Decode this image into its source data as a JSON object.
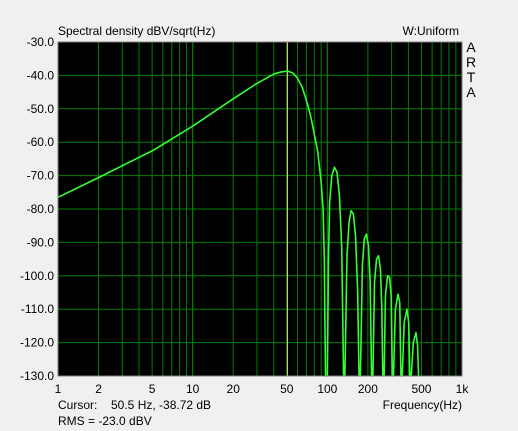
{
  "header": {
    "title": "Spectral density dBV/sqrt(Hz)",
    "window": "W:Uniform",
    "brand_letters": [
      "A",
      "R",
      "T",
      "A"
    ]
  },
  "footer": {
    "cursor_label": "Cursor:",
    "cursor_value": "50.5 Hz, -38.72 dB",
    "rms_text": "RMS =  -23.0 dBV",
    "rms_color": "#cc0000"
  },
  "colors": {
    "plot_bg": "#000000",
    "grid": "#008000",
    "trace": "#33ff33",
    "cursor": "#e8e880"
  },
  "chart_data": {
    "type": "line",
    "title": "Spectral density dBV/sqrt(Hz)",
    "xlabel": "Frequency(Hz)",
    "ylabel": "",
    "x_scale": "log",
    "xlim": [
      1,
      1000
    ],
    "ylim": [
      -130,
      -30
    ],
    "grid": true,
    "x_tick_labels": [
      {
        "v": 1,
        "t": "1"
      },
      {
        "v": 2,
        "t": "2"
      },
      {
        "v": 5,
        "t": "5"
      },
      {
        "v": 10,
        "t": "10"
      },
      {
        "v": 20,
        "t": "20"
      },
      {
        "v": 50,
        "t": "50"
      },
      {
        "v": 100,
        "t": "100"
      },
      {
        "v": 200,
        "t": "200"
      },
      {
        "v": 500,
        "t": "500"
      },
      {
        "v": 1000,
        "t": "1k"
      }
    ],
    "y_tick_labels": [
      "-30.0",
      "-40.0",
      "-50.0",
      "-60.0",
      "-70.0",
      "-80.0",
      "-90.0",
      "-100.0",
      "-110.0",
      "-120.0",
      "-130.0"
    ],
    "cursor_x": 50.5,
    "series": [
      {
        "points": [
          [
            1,
            -76.5
          ],
          [
            2,
            -70.6
          ],
          [
            5,
            -62.6
          ],
          [
            10,
            -55.2
          ],
          [
            20,
            -47.0
          ],
          [
            30,
            -42.4
          ],
          [
            40,
            -39.6
          ],
          [
            45,
            -39.0
          ],
          [
            50.5,
            -38.7
          ],
          [
            55,
            -39.2
          ],
          [
            60,
            -40.8
          ],
          [
            65,
            -43.5
          ],
          [
            70,
            -47.5
          ],
          [
            75,
            -52.0
          ],
          [
            80,
            -57.5
          ],
          [
            85,
            -63.0
          ],
          [
            90,
            -72.0
          ],
          [
            93,
            -80.0
          ],
          [
            95,
            -95.0
          ],
          [
            96,
            -115.0
          ],
          [
            97,
            -130.0
          ],
          [
            100,
            -130.0
          ],
          [
            102,
            -95.0
          ],
          [
            104,
            -78.0
          ],
          [
            108,
            -70.0
          ],
          [
            113,
            -67.5
          ],
          [
            118,
            -69.0
          ],
          [
            123,
            -76.0
          ],
          [
            128,
            -92.0
          ],
          [
            132,
            -130.0
          ],
          [
            135,
            -130.0
          ],
          [
            140,
            -94.0
          ],
          [
            145,
            -84.0
          ],
          [
            150,
            -80.5
          ],
          [
            156,
            -81.5
          ],
          [
            162,
            -88.0
          ],
          [
            168,
            -105.0
          ],
          [
            172,
            -130.0
          ],
          [
            176,
            -130.0
          ],
          [
            182,
            -97.0
          ],
          [
            188,
            -89.0
          ],
          [
            195,
            -87.5
          ],
          [
            202,
            -91.0
          ],
          [
            208,
            -102.0
          ],
          [
            213,
            -130.0
          ],
          [
            218,
            -130.0
          ],
          [
            224,
            -102.0
          ],
          [
            232,
            -95.0
          ],
          [
            240,
            -94.0
          ],
          [
            248,
            -98.0
          ],
          [
            254,
            -110.0
          ],
          [
            258,
            -130.0
          ],
          [
            264,
            -130.0
          ],
          [
            270,
            -106.0
          ],
          [
            280,
            -100.0
          ],
          [
            290,
            -100.5
          ],
          [
            298,
            -106.0
          ],
          [
            304,
            -130.0
          ],
          [
            310,
            -130.0
          ],
          [
            320,
            -110.0
          ],
          [
            335,
            -105.5
          ],
          [
            345,
            -108.0
          ],
          [
            352,
            -130.0
          ],
          [
            360,
            -130.0
          ],
          [
            372,
            -114.0
          ],
          [
            390,
            -110.0
          ],
          [
            402,
            -114.0
          ],
          [
            410,
            -130.0
          ],
          [
            420,
            -130.0
          ],
          [
            435,
            -120.0
          ],
          [
            455,
            -117.0
          ],
          [
            468,
            -121.0
          ],
          [
            476,
            -130.0
          ]
        ]
      }
    ]
  }
}
